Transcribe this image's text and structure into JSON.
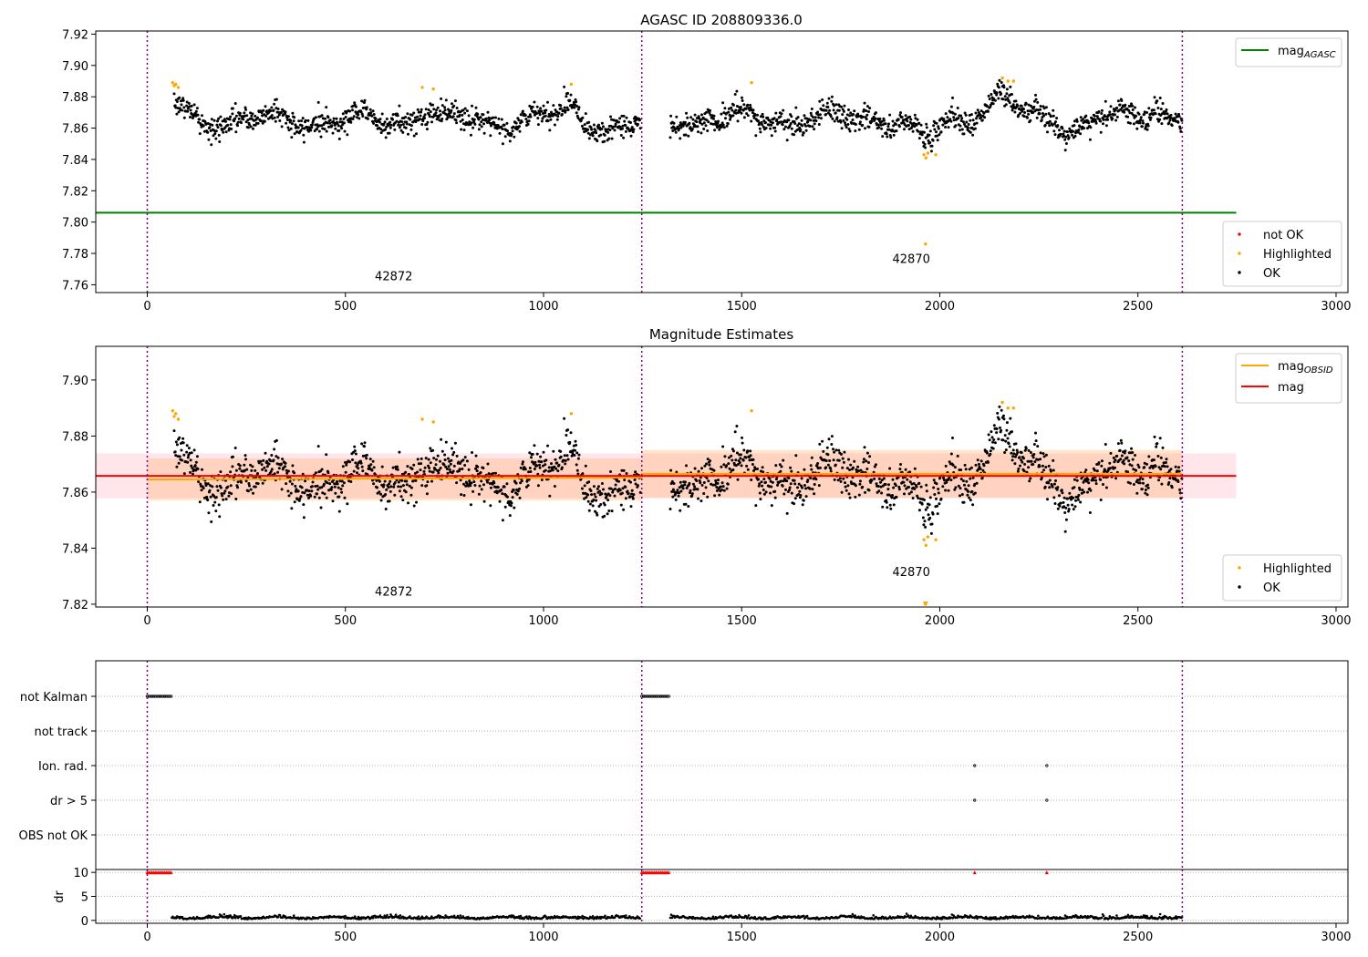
{
  "chart_data": [
    {
      "type": "scatter",
      "title": "AGASC ID 208809336.0",
      "xlim": [
        -130,
        3030
      ],
      "ylim": [
        7.755,
        7.922
      ],
      "x_ticks": [
        0,
        500,
        1000,
        1500,
        2000,
        2500,
        3000
      ],
      "y_ticks": [
        7.76,
        7.78,
        7.8,
        7.82,
        7.84,
        7.86,
        7.88,
        7.9,
        7.92
      ],
      "obsid_boundaries": [
        0,
        1248,
        2612
      ],
      "obsid_labels": [
        {
          "text": "42872",
          "x": 622,
          "y": 7.763
        },
        {
          "text": "42870",
          "x": 1928,
          "y": 7.774
        }
      ],
      "line_series": [
        {
          "name": "mag",
          "subscript": "AGASC",
          "color": "#008000",
          "x": [
            -130,
            2748
          ],
          "y": [
            7.806,
            7.806
          ]
        }
      ],
      "point_series": [
        {
          "name": "not OK",
          "color": "#ff0000"
        },
        {
          "name": "Highlighted",
          "color": "#ffa500"
        },
        {
          "name": "OK",
          "color": "#000000"
        }
      ],
      "segments": [
        {
          "x0": 68,
          "x1": 1245,
          "base": 7.865,
          "noise": 0.005
        },
        {
          "x0": 1320,
          "x1": 2612,
          "base": 7.866,
          "noise": 0.005
        }
      ],
      "highlighted_points": [
        {
          "x": 64,
          "y": 7.889
        },
        {
          "x": 68,
          "y": 7.887
        },
        {
          "x": 72,
          "y": 7.888
        },
        {
          "x": 78,
          "y": 7.886
        },
        {
          "x": 694,
          "y": 7.886
        },
        {
          "x": 722,
          "y": 7.885
        },
        {
          "x": 1070,
          "y": 7.888
        },
        {
          "x": 1525,
          "y": 7.889
        },
        {
          "x": 1960,
          "y": 7.843
        },
        {
          "x": 1965,
          "y": 7.841
        },
        {
          "x": 1970,
          "y": 7.844
        },
        {
          "x": 1990,
          "y": 7.843
        },
        {
          "x": 1964,
          "y": 7.786
        },
        {
          "x": 2158,
          "y": 7.892
        },
        {
          "x": 2172,
          "y": 7.89
        },
        {
          "x": 2186,
          "y": 7.89
        }
      ],
      "legend_lines": "top-right",
      "legend_points": "bottom-right"
    },
    {
      "type": "scatter",
      "title": "Magnitude Estimates",
      "xlim": [
        -130,
        3030
      ],
      "ylim": [
        7.819,
        7.912
      ],
      "x_ticks": [
        0,
        500,
        1000,
        1500,
        2000,
        2500,
        3000
      ],
      "y_ticks": [
        7.82,
        7.84,
        7.86,
        7.88,
        7.9
      ],
      "obsid_boundaries": [
        0,
        1248,
        2612
      ],
      "obsid_labels": [
        {
          "text": "42872",
          "x": 622,
          "y": 7.823
        },
        {
          "text": "42870",
          "x": 1928,
          "y": 7.83
        }
      ],
      "line_series": [
        {
          "name": "mag",
          "subscript": "OBSID",
          "color": "#ffa500",
          "x": [
            0,
            1248,
            1248,
            2612
          ],
          "y": [
            7.8645,
            7.8652,
            7.8665,
            7.8665
          ]
        },
        {
          "name": "mag",
          "subscript": "",
          "color": "#ff0000",
          "x": [
            -130,
            2748
          ],
          "y": [
            7.8658,
            7.8658
          ]
        }
      ],
      "bands": [
        {
          "color": "#ff4060",
          "opacity": 0.13,
          "x0": -130,
          "x1": 2748,
          "y0": 7.8578,
          "y1": 7.8738
        },
        {
          "color": "#ffa050",
          "opacity": 0.28,
          "x0": 0,
          "x1": 1248,
          "y0": 7.857,
          "y1": 7.872
        },
        {
          "color": "#ffa050",
          "opacity": 0.28,
          "x0": 1248,
          "x1": 2612,
          "y0": 7.858,
          "y1": 7.875
        }
      ],
      "point_series": [
        {
          "name": "Highlighted",
          "color": "#ffa500"
        },
        {
          "name": "OK",
          "color": "#000000"
        }
      ],
      "highlighted_points": [
        {
          "x": 64,
          "y": 7.889
        },
        {
          "x": 68,
          "y": 7.887
        },
        {
          "x": 72,
          "y": 7.888
        },
        {
          "x": 78,
          "y": 7.886
        },
        {
          "x": 694,
          "y": 7.886
        },
        {
          "x": 722,
          "y": 7.885
        },
        {
          "x": 1070,
          "y": 7.888
        },
        {
          "x": 1525,
          "y": 7.889
        },
        {
          "x": 1960,
          "y": 7.843
        },
        {
          "x": 1965,
          "y": 7.841
        },
        {
          "x": 1970,
          "y": 7.844
        },
        {
          "x": 1990,
          "y": 7.843
        },
        {
          "x": 1964,
          "y": 7.82
        },
        {
          "x": 2158,
          "y": 7.892
        },
        {
          "x": 2172,
          "y": 7.89
        },
        {
          "x": 2186,
          "y": 7.89
        }
      ],
      "legend_lines": "top-right",
      "legend_points": "bottom-right"
    },
    {
      "type": "scatter",
      "title": "",
      "xlim": [
        -130,
        3030
      ],
      "flag_rows": [
        "not Kalman",
        "not track",
        "Ion. rad.",
        "dr > 5",
        "OBS not OK"
      ],
      "flag_points": [
        {
          "row": "not Kalman",
          "x_ranges": [
            [
              0,
              62
            ],
            [
              1248,
              1318
            ]
          ]
        },
        {
          "row": "Ion. rad.",
          "x_points": [
            2088,
            2270
          ]
        },
        {
          "row": "dr > 5",
          "x_points": [
            2088,
            2270
          ]
        }
      ],
      "obsid_boundaries": [
        0,
        1248,
        2612
      ]
    },
    {
      "type": "scatter",
      "title": "",
      "ylabel": "dr",
      "xlim": [
        -130,
        3030
      ],
      "ylim": [
        -0.6,
        10.6
      ],
      "x_ticks": [
        0,
        500,
        1000,
        1500,
        2000,
        2500,
        3000
      ],
      "y_ticks": [
        0,
        5,
        10
      ],
      "obsid_boundaries": [
        0,
        1248,
        2612
      ],
      "clipped_points": {
        "color": "#ff0000",
        "y": 10,
        "x_ranges": [
          [
            0,
            62
          ],
          [
            1248,
            1318
          ]
        ],
        "x_points": [
          2088,
          2270
        ]
      },
      "dr_segments": [
        {
          "x0": 62,
          "x1": 1245,
          "base": 0.4,
          "noise": 0.25
        },
        {
          "x0": 1320,
          "x1": 2612,
          "base": 0.4,
          "noise": 0.25
        }
      ]
    }
  ]
}
